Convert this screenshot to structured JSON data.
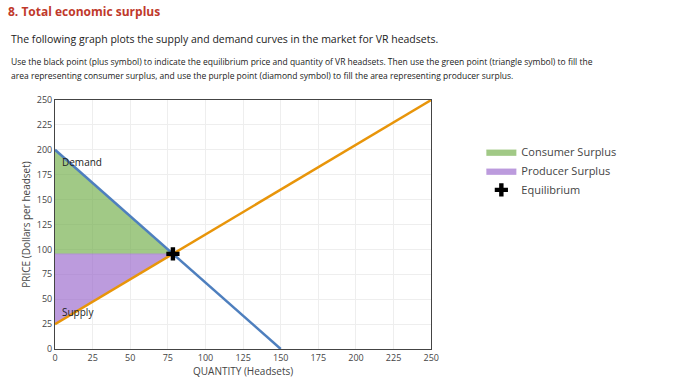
{
  "chart_data": {
    "type": "line",
    "title": "8. Total economic surplus",
    "subtitle": "The following graph plots the supply and demand curves in the market for VR headsets.",
    "annotations": [
      "Use the black point (plus symbol) to indicate the equilibrium price and quantity of VR headsets. Then use the green point (triangle symbol) to fill the",
      "area representing consumer surplus, and use the purple point (diamond symbol) to fill the area representing producer surplus."
    ],
    "xlabel": "QUANTITY (Headsets)",
    "ylabel": "PRICE (Dollars per headset)",
    "xlim": [
      0,
      250
    ],
    "ylim": [
      0,
      250
    ],
    "xticks": [
      0,
      25,
      50,
      75,
      100,
      125,
      150,
      175,
      200,
      225,
      250
    ],
    "yticks": [
      0,
      25,
      50,
      75,
      100,
      125,
      150,
      175,
      200,
      225,
      250
    ],
    "grid": true,
    "legend": "right",
    "series": [
      {
        "name": "Consumer Surplus",
        "type": "area",
        "color": "#70ad47",
        "x": [
          0,
          78.35820895522389,
          0,
          0
        ],
        "values": [
          200,
          95.52238805970148,
          95.52238805970148,
          200
        ]
      },
      {
        "name": "Producer Surplus",
        "type": "area",
        "color": "#9966cc",
        "x": [
          0,
          78.35820895522389,
          0,
          0
        ],
        "values": [
          25,
          95.52238805970148,
          95.52238805970148,
          25
        ]
      },
      {
        "name": "Demand",
        "type": "line",
        "color": "#4e7fbe",
        "x": [
          0,
          150
        ],
        "values": [
          200,
          0
        ]
      },
      {
        "name": "Supply",
        "type": "line",
        "color": "#e8950a",
        "x": [
          0,
          250
        ],
        "values": [
          25,
          250
        ]
      },
      {
        "name": "Equilibrium",
        "type": "scatter",
        "color": "#000000",
        "marker": "plus",
        "x": [
          78.35820895522389
        ],
        "values": [
          95.52238805970148
        ]
      }
    ]
  }
}
